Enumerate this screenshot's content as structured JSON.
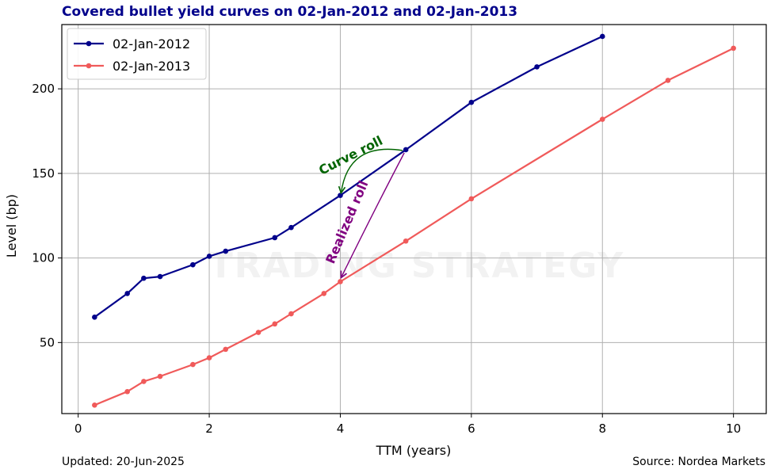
{
  "chart_data": {
    "type": "line",
    "title": "Covered bullet yield curves on 02-Jan-2012 and 02-Jan-2013",
    "xlabel": "TTM (years)",
    "ylabel": "Level (bp)",
    "xlim": [
      -0.25,
      10.5
    ],
    "ylim": [
      8,
      238
    ],
    "xticks": [
      0,
      2,
      4,
      6,
      8,
      10
    ],
    "yticks": [
      50,
      100,
      150,
      200
    ],
    "grid": true,
    "legend_position": "top-left",
    "series": [
      {
        "name": "02-Jan-2012",
        "color": "#00008b",
        "x": [
          0.25,
          0.75,
          1.0,
          1.25,
          1.75,
          2.0,
          2.25,
          3.0,
          3.25,
          4.0,
          5.0,
          6.0,
          7.0,
          8.0
        ],
        "y": [
          65,
          79,
          88,
          89,
          96,
          101,
          104,
          112,
          118,
          137,
          164,
          192,
          213,
          231
        ]
      },
      {
        "name": "02-Jan-2013",
        "color": "#f05a5a",
        "x": [
          0.25,
          0.75,
          1.0,
          1.25,
          1.75,
          2.0,
          2.25,
          2.75,
          3.0,
          3.25,
          3.75,
          4.0,
          5.0,
          6.0,
          8.0,
          9.0,
          10.0
        ],
        "y": [
          13,
          21,
          27,
          30,
          37,
          41,
          46,
          56,
          61,
          67,
          79,
          86,
          110,
          135,
          182,
          205,
          224
        ]
      }
    ],
    "annotations": [
      {
        "text": "Curve roll",
        "color": "#006400",
        "from": [
          5.0,
          164
        ],
        "to": [
          4.0,
          137
        ]
      },
      {
        "text": "Realized roll",
        "color": "#800080",
        "from": [
          5.0,
          164
        ],
        "to": [
          4.0,
          86
        ]
      }
    ],
    "watermark": "TRADING STRATEGY"
  },
  "footer": {
    "updated": "Updated: 20-Jun-2025",
    "source": "Source: Nordea Markets"
  },
  "colors": {
    "title": "#00008b",
    "grid": "#b0b0b0"
  }
}
